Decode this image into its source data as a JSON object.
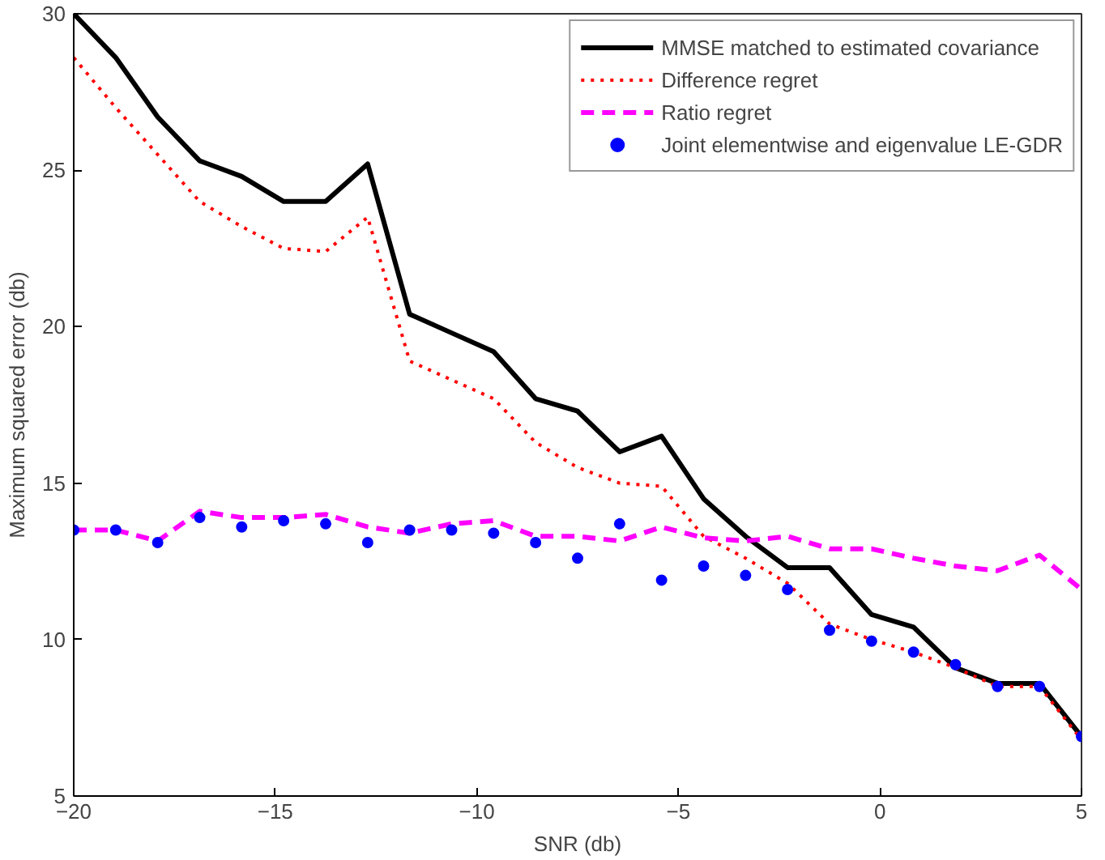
{
  "chart_data": {
    "type": "line",
    "xlabel": "SNR (db)",
    "ylabel": "Maximum squared error (db)",
    "x": [
      -20,
      -18.958,
      -17.917,
      -16.875,
      -15.833,
      -14.792,
      -13.75,
      -12.708,
      -11.667,
      -10.625,
      -9.583,
      -8.542,
      -7.5,
      -6.458,
      -5.417,
      -4.375,
      -3.333,
      -2.292,
      -1.25,
      -0.208,
      0.833,
      1.875,
      2.917,
      3.958,
      5
    ],
    "xlim": [
      -20,
      5
    ],
    "ylim": [
      5,
      30
    ],
    "xticks": [
      -20,
      -15,
      -10,
      -5,
      0,
      5
    ],
    "yticks": [
      5,
      10,
      15,
      20,
      25,
      30
    ],
    "grid": false,
    "legend": "top right",
    "series": [
      {
        "name": "MMSE matched to estimated covariance",
        "color": "#000000",
        "line_style": "solid",
        "marker": "none",
        "values": [
          30.0,
          28.6,
          26.7,
          25.3,
          24.8,
          24.0,
          24.0,
          25.2,
          20.4,
          19.8,
          19.2,
          17.7,
          17.3,
          16.0,
          16.5,
          14.5,
          13.3,
          12.3,
          12.3,
          10.8,
          10.4,
          9.1,
          8.6,
          8.6,
          6.9
        ]
      },
      {
        "name": "Difference regret",
        "color": "#ff0000",
        "line_style": "dotted",
        "marker": "none",
        "values": [
          28.6,
          27.0,
          25.5,
          24.0,
          23.2,
          22.5,
          22.4,
          23.5,
          18.9,
          18.3,
          17.7,
          16.3,
          15.5,
          15.0,
          14.9,
          13.3,
          12.6,
          11.8,
          10.5,
          10.0,
          9.6,
          9.1,
          8.5,
          8.5,
          6.8
        ]
      },
      {
        "name": "Ratio regret",
        "color": "#ff00ff",
        "line_style": "dashed",
        "marker": "none",
        "values": [
          13.5,
          13.5,
          13.15,
          14.1,
          13.9,
          13.9,
          14.0,
          13.6,
          13.4,
          13.7,
          13.8,
          13.3,
          13.3,
          13.15,
          13.6,
          13.25,
          13.15,
          13.3,
          12.9,
          12.9,
          12.6,
          12.35,
          12.2,
          12.7,
          11.6
        ]
      },
      {
        "name": "Joint elementwise and eigenvalue LE-GDR",
        "color": "#0000ff",
        "type": "scatter",
        "marker": "circle",
        "values": [
          13.5,
          13.5,
          13.1,
          13.9,
          13.6,
          13.8,
          13.7,
          13.1,
          13.5,
          13.5,
          13.4,
          13.1,
          12.6,
          13.7,
          11.9,
          12.35,
          12.05,
          11.6,
          10.3,
          9.95,
          9.6,
          9.2,
          8.5,
          8.5,
          6.9
        ]
      }
    ]
  }
}
